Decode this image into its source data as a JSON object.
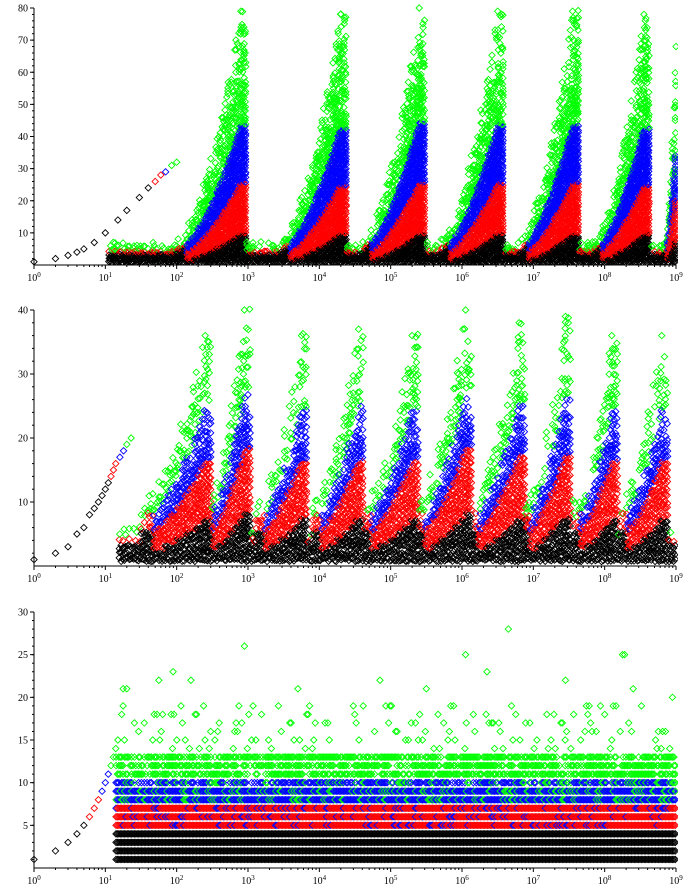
{
  "colors": {
    "black": "#000000",
    "red": "#ff0000",
    "blue": "#0000ff",
    "green": "#00ff00"
  },
  "chart_data": [
    {
      "type": "scatter",
      "title": "",
      "xlabel": "",
      "ylabel": "",
      "x_scale": "log",
      "xlim": [
        1,
        1000000000
      ],
      "ylim": [
        0,
        80
      ],
      "marker": "diamond-outline",
      "grid": false,
      "legend": "none",
      "x_tick_labels": [
        "10^0",
        "10^1",
        "10^2",
        "10^3",
        "10^4",
        "10^5",
        "10^6",
        "10^7",
        "10^8",
        "10^9"
      ],
      "y_tick_labels": [
        "10",
        "20",
        "30",
        "40",
        "50",
        "60",
        "70",
        "80"
      ],
      "series_colors": [
        "black",
        "red",
        "blue",
        "green"
      ],
      "start_diagonal": [
        {
          "x": 1,
          "y": 1,
          "color": "black"
        },
        {
          "x": 2,
          "y": 2,
          "color": "black"
        },
        {
          "x": 3,
          "y": 3,
          "color": "black"
        },
        {
          "x": 4,
          "y": 4,
          "color": "black"
        },
        {
          "x": 5,
          "y": 5,
          "color": "black"
        },
        {
          "x": 7,
          "y": 7,
          "color": "black"
        },
        {
          "x": 10,
          "y": 10,
          "color": "black"
        },
        {
          "x": 15,
          "y": 14,
          "color": "black"
        },
        {
          "x": 20,
          "y": 17,
          "color": "black"
        },
        {
          "x": 30,
          "y": 21,
          "color": "black"
        },
        {
          "x": 40,
          "y": 24,
          "color": "black"
        },
        {
          "x": 50,
          "y": 26,
          "color": "red"
        },
        {
          "x": 60,
          "y": 28,
          "color": "red"
        },
        {
          "x": 70,
          "y": 29,
          "color": "blue"
        },
        {
          "x": 85,
          "y": 31,
          "color": "green"
        },
        {
          "x": 100,
          "y": 32,
          "color": "green"
        }
      ],
      "waves": [
        {
          "start_exp": 2.0,
          "peak_exp": 2.9,
          "peak": 79
        },
        {
          "start_exp": 3.45,
          "peak_exp": 4.3,
          "peak": 78
        },
        {
          "start_exp": 4.6,
          "peak_exp": 5.4,
          "peak": 80
        },
        {
          "start_exp": 5.7,
          "peak_exp": 6.5,
          "peak": 79
        },
        {
          "start_exp": 6.8,
          "peak_exp": 7.55,
          "peak": 79
        },
        {
          "start_exp": 7.85,
          "peak_exp": 8.55,
          "peak": 78
        },
        {
          "start_exp": 8.85,
          "peak_exp": 9.0,
          "peak": 68
        }
      ]
    },
    {
      "type": "scatter",
      "title": "",
      "xlabel": "",
      "ylabel": "",
      "x_scale": "log",
      "xlim": [
        1,
        1000000000
      ],
      "ylim": [
        0,
        40
      ],
      "marker": "diamond-outline",
      "grid": false,
      "legend": "none",
      "x_tick_labels": [
        "10^0",
        "10^1",
        "10^2",
        "10^3",
        "10^4",
        "10^5",
        "10^6",
        "10^7",
        "10^8",
        "10^9"
      ],
      "y_tick_labels": [
        "10",
        "20",
        "30",
        "40"
      ],
      "series_colors": [
        "black",
        "red",
        "blue",
        "green"
      ],
      "start_diagonal": [
        {
          "x": 1,
          "y": 1,
          "color": "black"
        },
        {
          "x": 2,
          "y": 2,
          "color": "black"
        },
        {
          "x": 3,
          "y": 3,
          "color": "black"
        },
        {
          "x": 4,
          "y": 5,
          "color": "black"
        },
        {
          "x": 5,
          "y": 6,
          "color": "black"
        },
        {
          "x": 6,
          "y": 8,
          "color": "black"
        },
        {
          "x": 7,
          "y": 9,
          "color": "black"
        },
        {
          "x": 8,
          "y": 10,
          "color": "black"
        },
        {
          "x": 9,
          "y": 11,
          "color": "black"
        },
        {
          "x": 10,
          "y": 12,
          "color": "black"
        },
        {
          "x": 11,
          "y": 13,
          "color": "black"
        },
        {
          "x": 12,
          "y": 14,
          "color": "red"
        },
        {
          "x": 13,
          "y": 15,
          "color": "red"
        },
        {
          "x": 14,
          "y": 16,
          "color": "red"
        },
        {
          "x": 16,
          "y": 17,
          "color": "blue"
        },
        {
          "x": 18,
          "y": 18,
          "color": "blue"
        },
        {
          "x": 20,
          "y": 19,
          "color": "green"
        },
        {
          "x": 23,
          "y": 20,
          "color": "green"
        }
      ],
      "waves": [
        {
          "start_exp": 1.5,
          "peak_exp": 2.4,
          "peak": 36
        },
        {
          "start_exp": 2.4,
          "peak_exp": 2.95,
          "peak": 40
        },
        {
          "start_exp": 3.1,
          "peak_exp": 3.75,
          "peak": 36
        },
        {
          "start_exp": 3.9,
          "peak_exp": 4.55,
          "peak": 37
        },
        {
          "start_exp": 4.6,
          "peak_exp": 5.3,
          "peak": 36
        },
        {
          "start_exp": 5.35,
          "peak_exp": 6.05,
          "peak": 40
        },
        {
          "start_exp": 6.1,
          "peak_exp": 6.8,
          "peak": 38
        },
        {
          "start_exp": 6.85,
          "peak_exp": 7.45,
          "peak": 39
        },
        {
          "start_exp": 7.55,
          "peak_exp": 8.1,
          "peak": 36
        },
        {
          "start_exp": 8.2,
          "peak_exp": 8.8,
          "peak": 36
        }
      ]
    },
    {
      "type": "scatter",
      "title": "",
      "xlabel": "",
      "ylabel": "",
      "x_scale": "log",
      "xlim": [
        1,
        1000000000
      ],
      "ylim": [
        0,
        30
      ],
      "marker": "diamond-outline",
      "grid": false,
      "legend": "none",
      "x_tick_labels": [
        "10^0",
        "10^1",
        "10^2",
        "10^3",
        "10^4",
        "10^5",
        "10^6",
        "10^7",
        "10^8",
        "10^9"
      ],
      "y_tick_labels": [
        "5",
        "10",
        "15",
        "20",
        "25",
        "30"
      ],
      "series_colors": [
        "black",
        "red",
        "blue",
        "green"
      ],
      "start_diagonal": [
        {
          "x": 1,
          "y": 1,
          "color": "black"
        },
        {
          "x": 2,
          "y": 2,
          "color": "black"
        },
        {
          "x": 3,
          "y": 3,
          "color": "black"
        },
        {
          "x": 4,
          "y": 4,
          "color": "black"
        },
        {
          "x": 5,
          "y": 5,
          "color": "black"
        },
        {
          "x": 6,
          "y": 6,
          "color": "red"
        },
        {
          "x": 7,
          "y": 7,
          "color": "red"
        },
        {
          "x": 8,
          "y": 8,
          "color": "red"
        },
        {
          "x": 9,
          "y": 9,
          "color": "blue"
        },
        {
          "x": 10,
          "y": 10,
          "color": "blue"
        },
        {
          "x": 11,
          "y": 11,
          "color": "blue"
        },
        {
          "x": 12,
          "y": 12,
          "color": "green"
        },
        {
          "x": 13,
          "y": 13,
          "color": "green"
        },
        {
          "x": 14,
          "y": 14,
          "color": "green"
        },
        {
          "x": 15,
          "y": 15,
          "color": "green"
        }
      ],
      "peaks": [
        {
          "x_exp": 2.95,
          "y": 26
        },
        {
          "x_exp": 6.65,
          "y": 28
        },
        {
          "x_exp": 6.05,
          "y": 25
        },
        {
          "x_exp": 8.25,
          "y": 25
        },
        {
          "x_exp": 8.28,
          "y": 25
        },
        {
          "x_exp": 6.35,
          "y": 23
        },
        {
          "x_exp": 1.95,
          "y": 23
        },
        {
          "x_exp": 1.75,
          "y": 22
        },
        {
          "x_exp": 2.2,
          "y": 22
        },
        {
          "x_exp": 4.85,
          "y": 22
        },
        {
          "x_exp": 3.7,
          "y": 21
        },
        {
          "x_exp": 5.5,
          "y": 21
        },
        {
          "x_exp": 7.45,
          "y": 22
        },
        {
          "x_exp": 8.95,
          "y": 20
        },
        {
          "x_exp": 8.4,
          "y": 21
        },
        {
          "x_exp": 1.25,
          "y": 21
        },
        {
          "x_exp": 1.3,
          "y": 21
        }
      ]
    }
  ]
}
